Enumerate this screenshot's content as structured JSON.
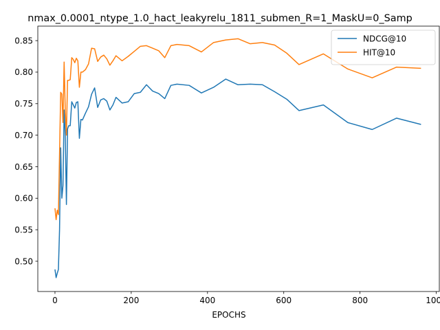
{
  "chart_data": {
    "type": "line",
    "title": "nmax_0.0001_ntype_1.0_hact_leakyrelu_1811_submen_R=1_MaskU=0_Samp",
    "xlabel": "EPOCHS",
    "ylabel": "",
    "xlim": [
      -45,
      1008
    ],
    "ylim": [
      0.452,
      0.873
    ],
    "xticks": [
      0,
      200,
      400,
      600,
      800,
      1000
    ],
    "yticks": [
      0.5,
      0.55,
      0.6,
      0.65,
      0.7,
      0.75,
      0.8,
      0.85
    ],
    "xtick_labels": [
      "0",
      "200",
      "400",
      "600",
      "800",
      "1000"
    ],
    "ytick_labels": [
      "0.50",
      "0.55",
      "0.60",
      "0.65",
      "0.70",
      "0.75",
      "0.80",
      "0.85"
    ],
    "grid": false,
    "legend_position": "top-right",
    "series": [
      {
        "name": "NDCG@10",
        "color": "#1f77b4",
        "points": [
          [
            0,
            0.487
          ],
          [
            3,
            0.474
          ],
          [
            6,
            0.481
          ],
          [
            9,
            0.487
          ],
          [
            12,
            0.55
          ],
          [
            15,
            0.68
          ],
          [
            18,
            0.6
          ],
          [
            21,
            0.62
          ],
          [
            24,
            0.74
          ],
          [
            27,
            0.7
          ],
          [
            30,
            0.59
          ],
          [
            33,
            0.71
          ],
          [
            36,
            0.715
          ],
          [
            40,
            0.715
          ],
          [
            44,
            0.753
          ],
          [
            48,
            0.748
          ],
          [
            52,
            0.743
          ],
          [
            56,
            0.752
          ],
          [
            60,
            0.753
          ],
          [
            64,
            0.695
          ],
          [
            68,
            0.725
          ],
          [
            72,
            0.724
          ],
          [
            80,
            0.735
          ],
          [
            88,
            0.745
          ],
          [
            96,
            0.765
          ],
          [
            104,
            0.775
          ],
          [
            112,
            0.744
          ],
          [
            120,
            0.756
          ],
          [
            128,
            0.758
          ],
          [
            136,
            0.754
          ],
          [
            144,
            0.74
          ],
          [
            152,
            0.748
          ],
          [
            160,
            0.76
          ],
          [
            176,
            0.751
          ],
          [
            192,
            0.753
          ],
          [
            208,
            0.766
          ],
          [
            224,
            0.768
          ],
          [
            240,
            0.78
          ],
          [
            256,
            0.77
          ],
          [
            272,
            0.766
          ],
          [
            288,
            0.758
          ],
          [
            304,
            0.779
          ],
          [
            320,
            0.781
          ],
          [
            352,
            0.779
          ],
          [
            384,
            0.767
          ],
          [
            416,
            0.776
          ],
          [
            448,
            0.789
          ],
          [
            480,
            0.78
          ],
          [
            512,
            0.781
          ],
          [
            544,
            0.78
          ],
          [
            576,
            0.769
          ],
          [
            608,
            0.757
          ],
          [
            640,
            0.739
          ],
          [
            704,
            0.748
          ],
          [
            768,
            0.72
          ],
          [
            832,
            0.709
          ],
          [
            896,
            0.727
          ],
          [
            960,
            0.717
          ]
        ]
      },
      {
        "name": "HIT@10",
        "color": "#ff7f0e",
        "points": [
          [
            0,
            0.584
          ],
          [
            3,
            0.566
          ],
          [
            6,
            0.581
          ],
          [
            9,
            0.574
          ],
          [
            12,
            0.67
          ],
          [
            15,
            0.768
          ],
          [
            18,
            0.765
          ],
          [
            21,
            0.72
          ],
          [
            24,
            0.816
          ],
          [
            27,
            0.74
          ],
          [
            30,
            0.7
          ],
          [
            33,
            0.787
          ],
          [
            36,
            0.787
          ],
          [
            40,
            0.788
          ],
          [
            44,
            0.823
          ],
          [
            48,
            0.82
          ],
          [
            52,
            0.815
          ],
          [
            56,
            0.822
          ],
          [
            60,
            0.818
          ],
          [
            64,
            0.776
          ],
          [
            68,
            0.8
          ],
          [
            72,
            0.8
          ],
          [
            80,
            0.804
          ],
          [
            88,
            0.813
          ],
          [
            96,
            0.838
          ],
          [
            104,
            0.837
          ],
          [
            112,
            0.817
          ],
          [
            120,
            0.824
          ],
          [
            128,
            0.827
          ],
          [
            136,
            0.821
          ],
          [
            144,
            0.811
          ],
          [
            152,
            0.818
          ],
          [
            160,
            0.826
          ],
          [
            176,
            0.818
          ],
          [
            192,
            0.825
          ],
          [
            208,
            0.833
          ],
          [
            224,
            0.841
          ],
          [
            240,
            0.842
          ],
          [
            256,
            0.838
          ],
          [
            272,
            0.834
          ],
          [
            288,
            0.823
          ],
          [
            304,
            0.842
          ],
          [
            320,
            0.844
          ],
          [
            352,
            0.842
          ],
          [
            384,
            0.832
          ],
          [
            416,
            0.847
          ],
          [
            448,
            0.851
          ],
          [
            480,
            0.853
          ],
          [
            512,
            0.845
          ],
          [
            544,
            0.847
          ],
          [
            576,
            0.843
          ],
          [
            608,
            0.83
          ],
          [
            640,
            0.812
          ],
          [
            704,
            0.829
          ],
          [
            768,
            0.805
          ],
          [
            832,
            0.791
          ],
          [
            896,
            0.808
          ],
          [
            960,
            0.806
          ]
        ]
      }
    ]
  }
}
